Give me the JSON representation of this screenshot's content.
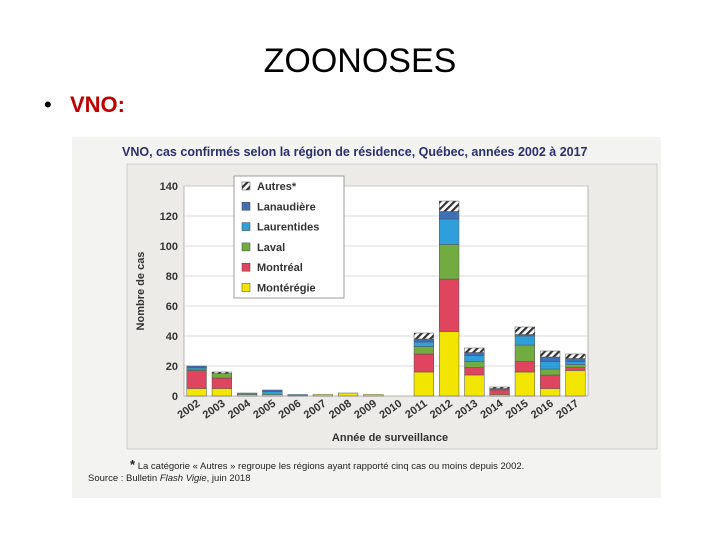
{
  "slide": {
    "title": "ZOONOSES",
    "bullet": "•",
    "bullet_text": "VNO:"
  },
  "figure": {
    "footnote_star": "*",
    "footnote": "La catégorie « Autres » regroupe les régions ayant rapporté cinq cas ou moins depuis 2002.",
    "source_prefix": "Source : Bulletin ",
    "source_italic": "Flash Vigie",
    "source_suffix": ", juin 2018"
  },
  "chart_data": {
    "type": "bar",
    "stacked": true,
    "title": "VNO, cas confirmés selon la région de résidence, Québec, années 2002 à 2017",
    "xlabel": "Année de surveillance",
    "ylabel": "Nombre de cas",
    "ylim": [
      0,
      140
    ],
    "yticks": [
      0,
      20,
      40,
      60,
      80,
      100,
      120,
      140
    ],
    "legend_position": "top-left",
    "categories": [
      "2002",
      "2003",
      "2004",
      "2005",
      "2006",
      "2007",
      "2008",
      "2009",
      "2010",
      "2011",
      "2012",
      "2013",
      "2014",
      "2015",
      "2016",
      "2017"
    ],
    "series": [
      {
        "name": "Montérégie",
        "color": "#f2e600",
        "values": [
          5,
          5,
          1,
          1,
          0,
          1,
          2,
          1,
          0,
          16,
          43,
          14,
          1,
          16,
          5,
          17
        ]
      },
      {
        "name": "Montréal",
        "color": "#e0455f",
        "values": [
          12,
          7,
          0,
          0,
          0,
          0,
          0,
          0,
          0,
          12,
          35,
          5,
          3,
          7,
          9,
          2
        ]
      },
      {
        "name": "Laval",
        "color": "#72ab3f",
        "values": [
          1,
          3,
          0,
          0,
          0,
          0,
          0,
          0,
          0,
          5,
          23,
          4,
          0,
          11,
          4,
          2
        ]
      },
      {
        "name": "Laurentides",
        "color": "#2f9fdc",
        "values": [
          1,
          0,
          1,
          2,
          1,
          0,
          0,
          0,
          0,
          3,
          17,
          4,
          0,
          6,
          5,
          2
        ]
      },
      {
        "name": "Lanaudière",
        "color": "#3f6fb5",
        "values": [
          1,
          0,
          0,
          1,
          0,
          0,
          0,
          0,
          0,
          2,
          5,
          2,
          1,
          1,
          3,
          2
        ]
      },
      {
        "name": "Autres*",
        "color": "hatch",
        "values": [
          0,
          1,
          0,
          0,
          0,
          0,
          0,
          0,
          0,
          4,
          7,
          3,
          1,
          5,
          4,
          3
        ]
      }
    ]
  }
}
